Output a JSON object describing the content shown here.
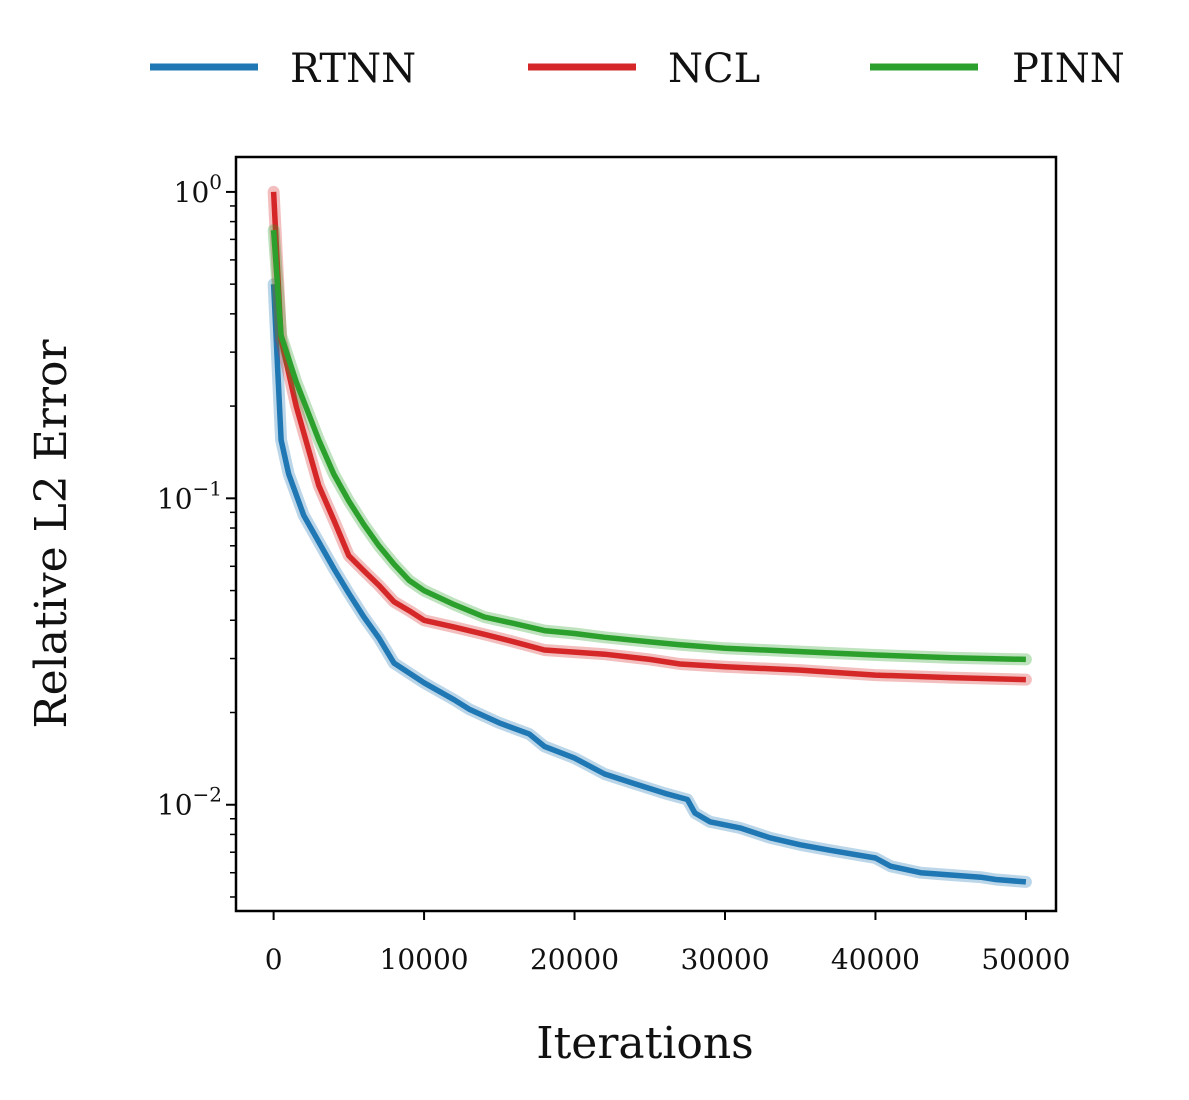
{
  "chart_data": {
    "type": "line",
    "xlabel": "Iterations",
    "ylabel": "Relative L2 Error",
    "yscale": "log",
    "xlim": [
      -2500,
      52000
    ],
    "ylim": [
      0.0045,
      1.3
    ],
    "x_ticks": [
      {
        "value": 0,
        "label": "0"
      },
      {
        "value": 10000,
        "label": "10000"
      },
      {
        "value": 20000,
        "label": "20000"
      },
      {
        "value": 30000,
        "label": "30000"
      },
      {
        "value": 40000,
        "label": "40000"
      },
      {
        "value": 50000,
        "label": "50000"
      }
    ],
    "y_ticks": [
      {
        "value": 1,
        "base": "10",
        "exp": "0"
      },
      {
        "value": 0.1,
        "base": "10",
        "exp": "−1"
      },
      {
        "value": 0.01,
        "base": "10",
        "exp": "−2"
      }
    ],
    "legend_position": "top",
    "series": [
      {
        "name": "RTNN",
        "color": "#1f77b4",
        "x": [
          0,
          500,
          1000,
          2000,
          3000,
          4000,
          5000,
          6000,
          7000,
          8000,
          10000,
          12000,
          13000,
          15000,
          17000,
          18000,
          20000,
          22000,
          24000,
          26000,
          27500,
          28000,
          29000,
          31000,
          33000,
          35000,
          37000,
          40000,
          41000,
          43000,
          45000,
          47000,
          48000,
          50000
        ],
        "y": [
          0.5,
          0.155,
          0.12,
          0.088,
          0.072,
          0.059,
          0.049,
          0.041,
          0.035,
          0.029,
          0.025,
          0.022,
          0.0205,
          0.0185,
          0.017,
          0.0155,
          0.0142,
          0.0126,
          0.0117,
          0.0109,
          0.0104,
          0.0094,
          0.0088,
          0.0084,
          0.0078,
          0.0074,
          0.0071,
          0.0067,
          0.0063,
          0.006,
          0.0059,
          0.0058,
          0.0057,
          0.0056
        ]
      },
      {
        "name": "NCL",
        "color": "#d62728",
        "x": [
          0,
          500,
          1500,
          3000,
          4000,
          5000,
          6000,
          7000,
          8000,
          9000,
          10000,
          12000,
          14000,
          16000,
          18000,
          20000,
          22000,
          25000,
          27000,
          30000,
          35000,
          40000,
          45000,
          50000
        ],
        "y": [
          1.0,
          0.33,
          0.2,
          0.11,
          0.085,
          0.065,
          0.058,
          0.052,
          0.046,
          0.043,
          0.04,
          0.038,
          0.036,
          0.034,
          0.032,
          0.0315,
          0.031,
          0.0298,
          0.0288,
          0.0282,
          0.0275,
          0.0265,
          0.026,
          0.0256
        ]
      },
      {
        "name": "PINN",
        "color": "#2ca02c",
        "x": [
          0,
          500,
          1500,
          3000,
          4000,
          5000,
          6000,
          7000,
          8000,
          9000,
          10000,
          12000,
          14000,
          16000,
          18000,
          20000,
          22000,
          25000,
          27000,
          30000,
          35000,
          40000,
          45000,
          50000
        ],
        "y": [
          0.75,
          0.34,
          0.24,
          0.155,
          0.12,
          0.098,
          0.082,
          0.07,
          0.061,
          0.054,
          0.05,
          0.045,
          0.041,
          0.039,
          0.037,
          0.0362,
          0.0352,
          0.034,
          0.0333,
          0.0324,
          0.0316,
          0.0308,
          0.0302,
          0.0298
        ]
      }
    ]
  }
}
